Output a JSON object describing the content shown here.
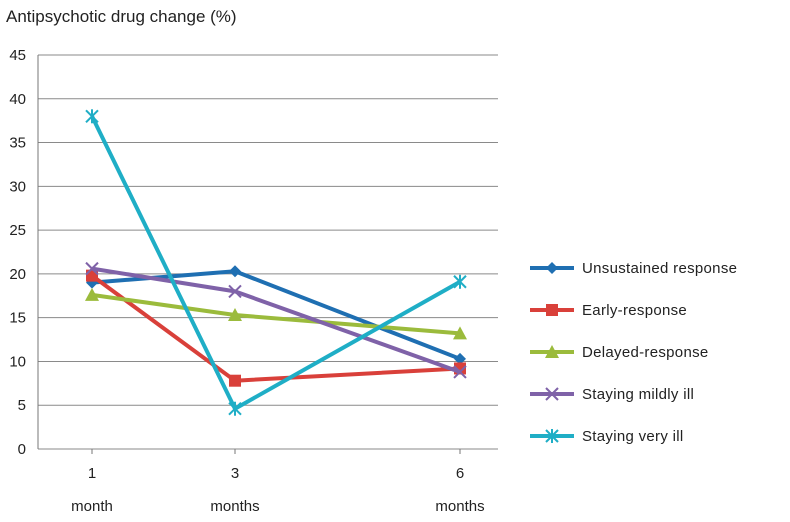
{
  "chart_data": {
    "type": "line",
    "title": "Antipsychotic drug change (%)",
    "xlabel": "",
    "ylabel": "",
    "categories": [
      [
        "1",
        "month"
      ],
      [
        "3",
        "months"
      ],
      [
        "6",
        "months"
      ]
    ],
    "ylim": [
      0,
      45
    ],
    "yticks": [
      0,
      5,
      10,
      15,
      20,
      25,
      30,
      35,
      40,
      45
    ],
    "grid": true,
    "legend_position": "right",
    "series": [
      {
        "name": "Unsustained response",
        "values": [
          19.0,
          20.3,
          10.3
        ],
        "color": "#1f6fb2",
        "marker": "diamond"
      },
      {
        "name": "Early-response",
        "values": [
          19.8,
          7.8,
          9.2
        ],
        "color": "#d9403a",
        "marker": "square"
      },
      {
        "name": "Delayed-response",
        "values": [
          17.6,
          15.3,
          13.2
        ],
        "color": "#9bbb3c",
        "marker": "triangle"
      },
      {
        "name": "Staying mildly ill",
        "values": [
          20.6,
          18.0,
          8.8
        ],
        "color": "#7f62a8",
        "marker": "x"
      },
      {
        "name": "Staying very ill",
        "values": [
          38.0,
          4.6,
          19.1
        ],
        "color": "#1faec6",
        "marker": "star"
      }
    ]
  }
}
